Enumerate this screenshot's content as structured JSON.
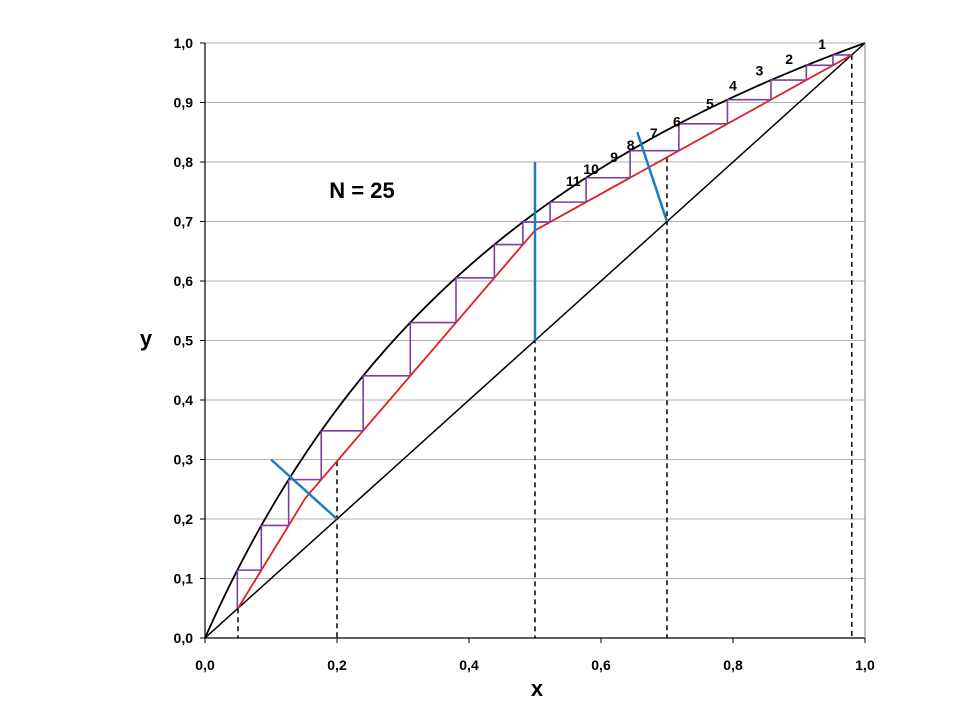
{
  "chart_data": {
    "type": "line",
    "xlabel": "x",
    "ylabel": "y",
    "xlim": [
      0,
      1
    ],
    "ylim": [
      0,
      1
    ],
    "x_ticks": [
      "0,0",
      "0,2",
      "0,4",
      "0,6",
      "0,8",
      "1,0"
    ],
    "x_tick_values": [
      0,
      0.2,
      0.4,
      0.6,
      0.8,
      1.0
    ],
    "y_ticks": [
      "0,0",
      "0,1",
      "0,2",
      "0,3",
      "0,4",
      "0,5",
      "0,6",
      "0,7",
      "0,8",
      "0,9",
      "1,0"
    ],
    "y_tick_values": [
      0,
      0.1,
      0.2,
      0.3,
      0.4,
      0.5,
      0.6,
      0.7,
      0.8,
      0.9,
      1.0
    ],
    "grid": "horizontal",
    "annotation": "N = 25",
    "relative_volatility": 2.5,
    "colors": {
      "equilibrium": "#000000",
      "diagonal": "#000000",
      "operating_lines": "#e02020",
      "q_lines": "#1a7fc0",
      "stages": "#7a3fa0",
      "grid": "#b0b0b0",
      "dashed": "#000000"
    },
    "operating_lines": {
      "rectifying": [
        [
          0.5,
          0.685
        ],
        [
          0.98,
          0.98
        ]
      ],
      "stripping_upper": [
        [
          0.152,
          0.235
        ],
        [
          0.5,
          0.685
        ]
      ],
      "stripping_lower": [
        [
          0.05,
          0.05
        ],
        [
          0.152,
          0.235
        ]
      ]
    },
    "feed_lines": [
      {
        "from": [
          0.7,
          0.7
        ],
        "to": [
          0.655,
          0.85
        ]
      },
      {
        "from": [
          0.5,
          0.5
        ],
        "to": [
          0.5,
          0.8
        ]
      },
      {
        "from": [
          0.2,
          0.2
        ],
        "to": [
          0.1,
          0.3
        ]
      }
    ],
    "dashed_x": [
      0.05,
      0.2,
      0.5,
      0.7,
      0.98
    ],
    "stage_labels": [
      {
        "text": "1",
        "x": 0.935,
        "y": 0.99
      },
      {
        "text": "2",
        "x": 0.885,
        "y": 0.965
      },
      {
        "text": "3",
        "x": 0.84,
        "y": 0.945
      },
      {
        "text": "4",
        "x": 0.8,
        "y": 0.92
      },
      {
        "text": "5",
        "x": 0.765,
        "y": 0.89
      },
      {
        "text": "6",
        "x": 0.715,
        "y": 0.86
      },
      {
        "text": "7",
        "x": 0.68,
        "y": 0.84
      },
      {
        "text": "8",
        "x": 0.645,
        "y": 0.82
      },
      {
        "text": "9",
        "x": 0.62,
        "y": 0.8
      },
      {
        "text": "10",
        "x": 0.585,
        "y": 0.78
      },
      {
        "text": "11",
        "x": 0.558,
        "y": 0.76
      }
    ]
  }
}
